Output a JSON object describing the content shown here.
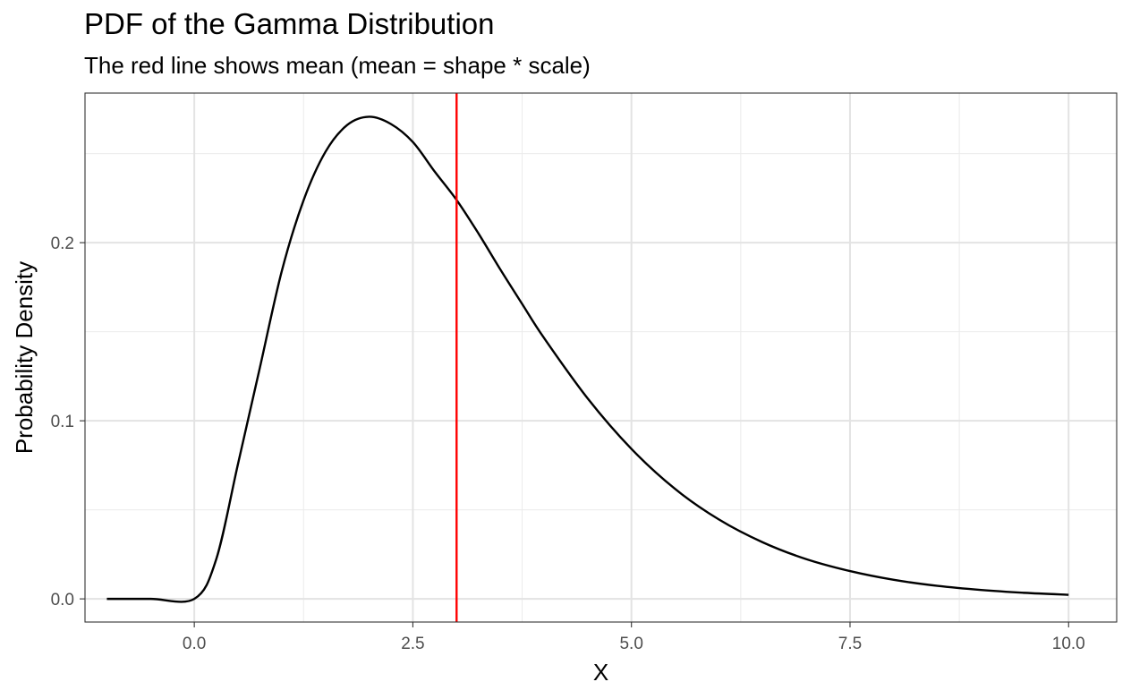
{
  "chart_data": {
    "type": "line",
    "title": "PDF of the Gamma Distribution",
    "subtitle": "The red line shows mean (mean = shape * scale)",
    "xlabel": "X",
    "ylabel": "Probability Density",
    "xlim": [
      -1.25,
      10.55
    ],
    "ylim": [
      -0.013,
      0.284
    ],
    "x_ticks": [
      0.0,
      2.5,
      5.0,
      7.5,
      10.0
    ],
    "x_tick_labels": [
      "0.0",
      "2.5",
      "5.0",
      "7.5",
      "10.0"
    ],
    "y_ticks": [
      0.0,
      0.1,
      0.2
    ],
    "y_tick_labels": [
      "0.0",
      "0.1",
      "0.2"
    ],
    "grid": true,
    "series": [
      {
        "color": "#000000",
        "x": [
          -1.0,
          -0.5,
          0.0,
          0.25,
          0.5,
          0.75,
          1.0,
          1.25,
          1.5,
          1.75,
          2.0,
          2.25,
          2.5,
          2.75,
          3.0,
          3.25,
          3.5,
          3.75,
          4.0,
          4.5,
          5.0,
          5.5,
          6.0,
          6.5,
          7.0,
          7.5,
          8.0,
          8.5,
          9.0,
          9.5,
          10.0
        ],
        "values": [
          0.0,
          0.0,
          0.0,
          0.0221,
          0.0758,
          0.1298,
          0.1839,
          0.2238,
          0.251,
          0.2661,
          0.2707,
          0.2666,
          0.2565,
          0.2399,
          0.224,
          0.2052,
          0.185,
          0.1656,
          0.1465,
          0.1125,
          0.0842,
          0.0617,
          0.0446,
          0.0318,
          0.0223,
          0.0156,
          0.0107,
          0.0073,
          0.005,
          0.0034,
          0.0023
        ]
      }
    ],
    "vlines": [
      {
        "x": 3.0,
        "color": "#ff0000",
        "label": "mean"
      }
    ]
  }
}
